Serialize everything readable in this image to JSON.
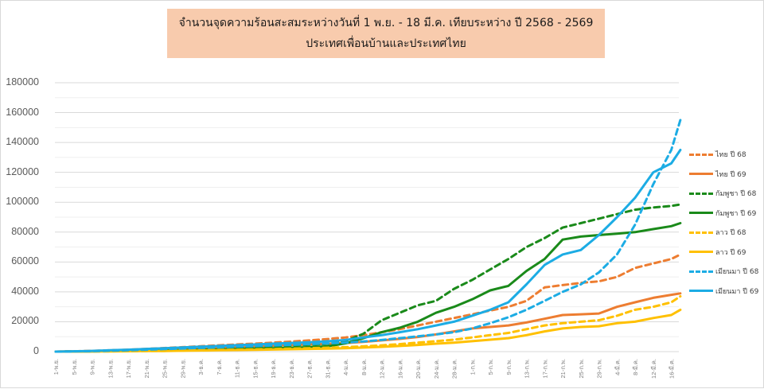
{
  "title": {
    "line1": "จำนวนจุดความร้อนสะสมระหว่างวันที่ 1 พ.ย. - 18 มี.ค. เทียบระหว่าง ปี 2568 - 2569",
    "line2": "ประเทศเพื่อนบ้านและประเทศไทย",
    "background": "#f8cbad"
  },
  "y_axis": {
    "ticks": [
      "180000",
      "160000",
      "140000",
      "120000",
      "100000",
      "80000",
      "60000",
      "40000",
      "20000",
      "0"
    ]
  },
  "legend": {
    "items": [
      {
        "label": "ไทย ปี 68",
        "color": "#ed7d31",
        "dashed": true
      },
      {
        "label": "ไทย ปี 69",
        "color": "#ed7d31",
        "dashed": false
      },
      {
        "label": "กัมพูชา ปี 68",
        "color": "#1a8a1a",
        "dashed": true
      },
      {
        "label": "กัมพูชา ปี 69",
        "color": "#1a8a1a",
        "dashed": false
      },
      {
        "label": "ลาว ปี 68",
        "color": "#ffc000",
        "dashed": true
      },
      {
        "label": "ลาว ปี 69",
        "color": "#ffc000",
        "dashed": false
      },
      {
        "label": "เมียนมา ปี 68",
        "color": "#1cace4",
        "dashed": true
      },
      {
        "label": "เมียนมา ปี 69",
        "color": "#1cace4",
        "dashed": false
      }
    ]
  },
  "chart_data": {
    "type": "line",
    "title": "จำนวนจุดความร้อนสะสมระหว่างวันที่ 1 พ.ย. - 18 มี.ค. เทียบระหว่าง ปี 2568 - 2569 ประเทศเพื่อนบ้านและประเทศไทย",
    "xlabel": "",
    "ylabel": "",
    "ylim": [
      0,
      180000
    ],
    "yticks": [
      0,
      20000,
      40000,
      60000,
      80000,
      100000,
      120000,
      140000,
      160000,
      180000
    ],
    "grid": true,
    "legend_position": "right",
    "categories": [
      "1-พ.ย.",
      "5-พ.ย.",
      "9-พ.ย.",
      "13-พ.ย.",
      "17-พ.ย.",
      "21-พ.ย.",
      "25-พ.ย.",
      "29-พ.ย.",
      "3-ธ.ค.",
      "7-ธ.ค.",
      "11-ธ.ค.",
      "15-ธ.ค.",
      "19-ธ.ค.",
      "23-ธ.ค.",
      "27-ธ.ค.",
      "31-ธ.ค.",
      "4-ม.ค.",
      "8-ม.ค.",
      "12-ม.ค.",
      "16-ม.ค.",
      "20-ม.ค.",
      "24-ม.ค.",
      "28-ม.ค.",
      "1-ก.พ.",
      "5-ก.พ.",
      "9-ก.พ.",
      "13-ก.พ.",
      "17-ก.พ.",
      "21-ก.พ.",
      "25-ก.พ.",
      "29-ก.พ.",
      "4-มี.ค.",
      "8-มี.ค.",
      "12-มี.ค.",
      "16-มี.ค.",
      "18-มี.ค."
    ],
    "series": [
      {
        "name": "ไทย ปี 68",
        "color": "#ed7d31",
        "dashed": true,
        "values": [
          0,
          200,
          500,
          900,
          1300,
          1800,
          2400,
          3000,
          3600,
          4200,
          4800,
          5400,
          6000,
          6700,
          7500,
          8400,
          9500,
          11000,
          13000,
          15000,
          17500,
          20000,
          22500,
          25000,
          27500,
          30000,
          34000,
          43000,
          44500,
          46000,
          47000,
          50000,
          56000,
          59000,
          62000,
          65000
        ]
      },
      {
        "name": "ไทย ปี 69",
        "color": "#ed7d31",
        "dashed": false,
        "values": [
          0,
          100,
          300,
          600,
          900,
          1200,
          1600,
          2000,
          2400,
          2800,
          3200,
          3600,
          4000,
          4400,
          4800,
          5200,
          5700,
          6500,
          7500,
          8500,
          9800,
          11500,
          13500,
          15500,
          16500,
          17500,
          19500,
          22000,
          24500,
          25000,
          25500,
          30000,
          33000,
          36000,
          38000,
          39000
        ]
      },
      {
        "name": "กัมพูชา ปี 68",
        "color": "#1a8a1a",
        "dashed": true,
        "values": [
          0,
          100,
          200,
          400,
          600,
          900,
          1200,
          1600,
          2000,
          2400,
          2800,
          3200,
          3600,
          4100,
          4600,
          5200,
          7000,
          12000,
          21000,
          26000,
          31000,
          34000,
          42000,
          48000,
          55000,
          62000,
          70000,
          76000,
          83000,
          86000,
          89000,
          92000,
          95000,
          96500,
          97500,
          98500
        ]
      },
      {
        "name": "กัมพูชา ปี 69",
        "color": "#1a8a1a",
        "dashed": false,
        "values": [
          0,
          50,
          150,
          300,
          450,
          600,
          800,
          1000,
          1200,
          1400,
          1700,
          2000,
          2300,
          2600,
          3000,
          3500,
          5500,
          9000,
          13000,
          16000,
          20000,
          26000,
          30000,
          35000,
          41000,
          44000,
          54000,
          62000,
          75000,
          77000,
          78000,
          79000,
          80000,
          82000,
          84000,
          86000
        ]
      },
      {
        "name": "ลาว ปี 68",
        "color": "#ffc000",
        "dashed": true,
        "values": [
          0,
          50,
          100,
          200,
          300,
          400,
          500,
          700,
          900,
          1100,
          1300,
          1500,
          1700,
          2000,
          2300,
          2600,
          3000,
          3500,
          4200,
          5000,
          6000,
          7000,
          8000,
          9500,
          11000,
          12500,
          15000,
          17500,
          19000,
          20000,
          21000,
          24000,
          28000,
          30000,
          33000,
          37000
        ]
      },
      {
        "name": "ลาว ปี 69",
        "color": "#ffc000",
        "dashed": false,
        "values": [
          0,
          30,
          80,
          150,
          250,
          350,
          450,
          600,
          750,
          900,
          1050,
          1200,
          1400,
          1600,
          1800,
          2000,
          2300,
          2700,
          3200,
          3800,
          4500,
          5300,
          6000,
          7000,
          8000,
          9000,
          11000,
          13500,
          15500,
          16500,
          17000,
          19000,
          20000,
          22500,
          24500,
          28000
        ]
      },
      {
        "name": "เมียนมา ปี 68",
        "color": "#1cace4",
        "dashed": true,
        "values": [
          0,
          100,
          300,
          600,
          900,
          1300,
          1700,
          2100,
          2500,
          2900,
          3300,
          3700,
          4100,
          4500,
          5000,
          5500,
          6000,
          6800,
          7800,
          9000,
          10200,
          11500,
          13000,
          15500,
          19000,
          23000,
          28000,
          34000,
          40000,
          45000,
          53000,
          65000,
          85000,
          112000,
          135000,
          155000
        ]
      },
      {
        "name": "เมียนมา ปี 69",
        "color": "#1cace4",
        "dashed": false,
        "values": [
          0,
          200,
          500,
          900,
          1300,
          1800,
          2300,
          2800,
          3300,
          3800,
          4300,
          4800,
          5300,
          5800,
          6300,
          6900,
          7800,
          9500,
          11000,
          13000,
          15000,
          17500,
          20000,
          24000,
          28000,
          33000,
          45000,
          58000,
          65000,
          68000,
          78000,
          90000,
          103000,
          120000,
          126000,
          135000
        ]
      }
    ]
  }
}
